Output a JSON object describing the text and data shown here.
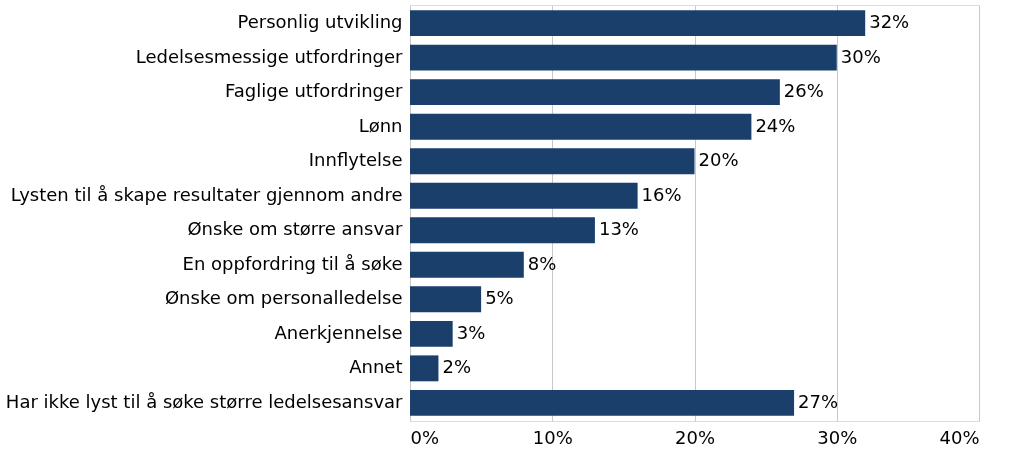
{
  "chart_data": {
    "type": "bar",
    "orientation": "horizontal",
    "categories": [
      "Personlig utvikling",
      "Ledelsesmessige utfordringer",
      "Faglige utfordringer",
      "Lønn",
      "Innflytelse",
      "Lysten til å skape resultater gjennom andre",
      "Ønske om større ansvar",
      "En oppfordring til å søke",
      "Ønske om personalledelse",
      "Anerkjennelse",
      "Annet",
      "Har ikke lyst til å søke større ledelsesansvar"
    ],
    "values": [
      32,
      30,
      26,
      24,
      20,
      16,
      13,
      8,
      5,
      3,
      2,
      27
    ],
    "value_labels": [
      "32%",
      "30%",
      "26%",
      "24%",
      "20%",
      "16%",
      "13%",
      "8%",
      "5%",
      "3%",
      "2%",
      "27%"
    ],
    "color": "#1a3f6b",
    "xlim": [
      0,
      40
    ],
    "xticks": [
      {
        "value": 0,
        "label": "0%"
      },
      {
        "value": 10,
        "label": "10%"
      },
      {
        "value": 20,
        "label": "20%"
      },
      {
        "value": 30,
        "label": "30%"
      },
      {
        "value": 40,
        "label": "40%"
      }
    ],
    "grid": "x"
  }
}
